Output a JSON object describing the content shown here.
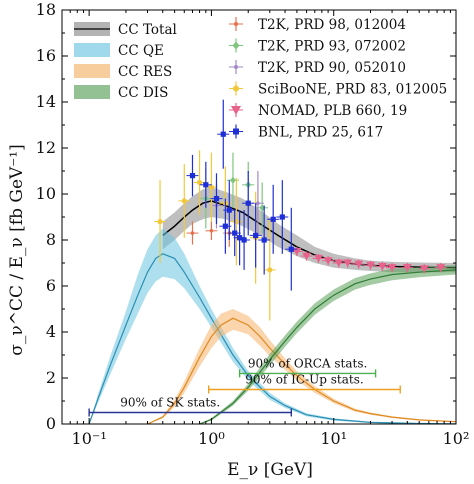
{
  "chart_data": {
    "type": "line",
    "xlabel": "E_ν [GeV]",
    "ylabel": "σ_ν^CC / E_ν  [fb GeV⁻¹]",
    "xscale": "log",
    "xlim": [
      0.06,
      100
    ],
    "ylim": [
      0,
      18
    ],
    "x_ticks": [
      {
        "value": 0.1,
        "label": "10⁻¹"
      },
      {
        "value": 1,
        "label": "10⁰"
      },
      {
        "value": 10,
        "label": "10¹"
      },
      {
        "value": 100,
        "label": "10²"
      }
    ],
    "y_ticks": [
      0,
      2,
      4,
      6,
      8,
      10,
      12,
      14,
      16,
      18
    ],
    "legend_position": "top",
    "bands": [
      {
        "name": "CC Total",
        "color": "#8a8a8a",
        "x": [
          0.4,
          0.5,
          0.6,
          0.7,
          0.85,
          1.0,
          1.3,
          1.8,
          2.5,
          3.5,
          5,
          7,
          10,
          15,
          20,
          30,
          50,
          100
        ],
        "y": [
          8.2,
          8.6,
          9.0,
          9.3,
          9.6,
          9.7,
          9.5,
          9.2,
          8.7,
          8.2,
          7.7,
          7.35,
          7.1,
          6.95,
          6.9,
          6.85,
          6.82,
          6.8
        ],
        "lo": [
          7.6,
          8.0,
          8.4,
          8.7,
          8.9,
          9.0,
          8.9,
          8.6,
          8.2,
          7.7,
          7.3,
          7.0,
          6.8,
          6.7,
          6.65,
          6.6,
          6.6,
          6.6
        ],
        "hi": [
          8.8,
          9.2,
          9.6,
          9.9,
          10.2,
          10.3,
          10.1,
          9.8,
          9.3,
          8.7,
          8.2,
          7.7,
          7.4,
          7.2,
          7.1,
          7.05,
          7.02,
          7.0
        ]
      },
      {
        "name": "CC QE",
        "color": "#6cc4e0",
        "x": [
          0.1,
          0.12,
          0.15,
          0.2,
          0.25,
          0.3,
          0.35,
          0.4,
          0.5,
          0.6,
          0.8,
          1.0,
          1.5,
          2,
          3,
          4,
          6,
          10,
          20,
          50,
          100
        ],
        "y": [
          0.0,
          1.2,
          2.6,
          4.3,
          5.6,
          6.6,
          7.2,
          7.4,
          7.2,
          6.6,
          5.5,
          4.6,
          3.0,
          2.1,
          1.2,
          0.8,
          0.4,
          0.2,
          0.07,
          0.02,
          0.01
        ],
        "lo": [
          0.0,
          1.0,
          2.2,
          3.7,
          4.8,
          5.7,
          6.2,
          6.4,
          6.3,
          5.9,
          5.0,
          4.2,
          2.7,
          1.9,
          1.05,
          0.7,
          0.33,
          0.15,
          0.05,
          0.01,
          0.0
        ],
        "hi": [
          0.0,
          1.4,
          3.0,
          4.9,
          6.5,
          7.6,
          8.2,
          8.5,
          8.1,
          7.4,
          6.0,
          5.0,
          3.3,
          2.3,
          1.35,
          0.9,
          0.47,
          0.25,
          0.09,
          0.03,
          0.01
        ]
      },
      {
        "name": "CC RES",
        "color": "#f5b26a",
        "x": [
          0.3,
          0.4,
          0.5,
          0.6,
          0.8,
          1.0,
          1.2,
          1.5,
          2.0,
          2.5,
          3,
          4,
          5,
          7,
          10,
          15,
          20,
          30,
          50,
          100
        ],
        "y": [
          0.0,
          0.3,
          0.9,
          1.6,
          2.9,
          3.8,
          4.3,
          4.6,
          4.3,
          3.8,
          3.3,
          2.6,
          2.1,
          1.5,
          1.0,
          0.6,
          0.45,
          0.3,
          0.18,
          0.1
        ],
        "lo": [
          0.0,
          0.25,
          0.75,
          1.35,
          2.5,
          3.3,
          3.8,
          4.1,
          3.9,
          3.4,
          2.95,
          2.35,
          1.9,
          1.35,
          0.9,
          0.53,
          0.4,
          0.26,
          0.15,
          0.08
        ],
        "hi": [
          0.0,
          0.35,
          1.05,
          1.85,
          3.3,
          4.3,
          4.8,
          5.0,
          4.7,
          4.2,
          3.65,
          2.85,
          2.3,
          1.65,
          1.1,
          0.67,
          0.5,
          0.34,
          0.21,
          0.12
        ]
      },
      {
        "name": "CC DIS",
        "color": "#5aa05a",
        "x": [
          0.8,
          1.0,
          1.5,
          2.0,
          3.0,
          4.0,
          5.0,
          7.0,
          10,
          15,
          20,
          30,
          50,
          100
        ],
        "y": [
          0.0,
          0.2,
          0.9,
          1.6,
          2.8,
          3.6,
          4.2,
          5.0,
          5.6,
          6.1,
          6.3,
          6.5,
          6.6,
          6.7
        ],
        "lo": [
          0.0,
          0.15,
          0.8,
          1.45,
          2.55,
          3.35,
          3.95,
          4.75,
          5.35,
          5.85,
          6.05,
          6.25,
          6.38,
          6.5
        ],
        "hi": [
          0.0,
          0.25,
          1.0,
          1.75,
          3.05,
          3.85,
          4.45,
          5.25,
          5.85,
          6.35,
          6.55,
          6.75,
          6.82,
          6.9
        ]
      }
    ],
    "series": [
      {
        "name": "T2K, PRD 98, 012004",
        "color": "#e6704e",
        "marker": "plus",
        "points": [
          {
            "x": 0.7,
            "y": 8.3,
            "err": 0.5
          },
          {
            "x": 1.0,
            "y": 8.4,
            "err": 0.4
          },
          {
            "x": 1.4,
            "y": 8.3,
            "err": 0.6
          }
        ]
      },
      {
        "name": "T2K, PRD 93, 072002",
        "color": "#7fc77f",
        "marker": "diamond",
        "points": [
          {
            "x": 0.9,
            "y": 9.8,
            "err": 1.3
          },
          {
            "x": 1.5,
            "y": 10.6,
            "err": 1.2
          },
          {
            "x": 2.0,
            "y": 10.4,
            "err": 1.0
          },
          {
            "x": 2.6,
            "y": 9.4,
            "err": 1.1
          }
        ]
      },
      {
        "name": "T2K, PRD 90, 052010",
        "color": "#a588c9",
        "marker": "plus",
        "points": [
          {
            "x": 1.1,
            "y": 9.5,
            "err": 1.0
          },
          {
            "x": 2.4,
            "y": 9.6,
            "err": 1.4
          }
        ]
      },
      {
        "name": "SciBooNE, PRD 83, 012005",
        "color": "#f2c83a",
        "marker": "circle",
        "points": [
          {
            "x": 0.38,
            "y": 8.8,
            "err": 1.8
          },
          {
            "x": 0.6,
            "y": 9.7,
            "err": 1.6
          },
          {
            "x": 0.8,
            "y": 10.5,
            "err": 1.4
          },
          {
            "x": 1.0,
            "y": 10.3,
            "err": 1.5
          },
          {
            "x": 1.3,
            "y": 9.6,
            "err": 1.6
          },
          {
            "x": 1.6,
            "y": 8.8,
            "err": 1.9
          },
          {
            "x": 2.3,
            "y": 8.1,
            "err": 2.0
          },
          {
            "x": 3.0,
            "y": 6.7,
            "err": 2.2
          }
        ]
      },
      {
        "name": "NOMAD, PLB 660, 19",
        "color": "#e8638c",
        "marker": "triangle-down",
        "points": [
          {
            "x": 5.0,
            "y": 7.5,
            "err": 0.2
          },
          {
            "x": 6.0,
            "y": 7.3,
            "err": 0.2
          },
          {
            "x": 7.5,
            "y": 7.2,
            "err": 0.2
          },
          {
            "x": 9.0,
            "y": 7.1,
            "err": 0.2
          },
          {
            "x": 11,
            "y": 7.0,
            "err": 0.2
          },
          {
            "x": 13,
            "y": 7.0,
            "err": 0.2
          },
          {
            "x": 16,
            "y": 6.95,
            "err": 0.2
          },
          {
            "x": 20,
            "y": 6.9,
            "err": 0.2
          },
          {
            "x": 25,
            "y": 6.85,
            "err": 0.2
          },
          {
            "x": 30,
            "y": 6.8,
            "err": 0.2
          },
          {
            "x": 40,
            "y": 6.8,
            "err": 0.2
          },
          {
            "x": 55,
            "y": 6.75,
            "err": 0.2
          },
          {
            "x": 75,
            "y": 6.8,
            "err": 0.2
          }
        ]
      },
      {
        "name": "BNL, PRD 25, 617",
        "color": "#1f2fd6",
        "marker": "square",
        "points": [
          {
            "x": 0.7,
            "y": 10.8,
            "err": 0.9
          },
          {
            "x": 0.9,
            "y": 10.4,
            "err": 1.0
          },
          {
            "x": 1.1,
            "y": 9.8,
            "err": 1.1
          },
          {
            "x": 1.25,
            "y": 12.6,
            "err": 1.5
          },
          {
            "x": 1.3,
            "y": 8.6,
            "err": 1.2
          },
          {
            "x": 1.4,
            "y": 9.3,
            "err": 1.3
          },
          {
            "x": 1.55,
            "y": 8.3,
            "err": 1.0
          },
          {
            "x": 1.7,
            "y": 8.1,
            "err": 1.2
          },
          {
            "x": 1.85,
            "y": 8.0,
            "err": 1.3
          },
          {
            "x": 2.0,
            "y": 9.6,
            "err": 1.4
          },
          {
            "x": 2.3,
            "y": 8.2,
            "err": 1.4
          },
          {
            "x": 2.7,
            "y": 8.0,
            "err": 1.5
          },
          {
            "x": 3.2,
            "y": 8.9,
            "err": 1.5
          },
          {
            "x": 3.8,
            "y": 9.0,
            "err": 1.6
          },
          {
            "x": 4.5,
            "y": 7.6,
            "err": 1.8
          }
        ]
      }
    ],
    "ranges": [
      {
        "label": "90% of ORCA stats.",
        "color": "#4caf50",
        "x0": 1.7,
        "x1": 22,
        "y": 2.2
      },
      {
        "label": "90% of IC-Up stats.",
        "color": "#f0a020",
        "x0": 0.95,
        "x1": 35,
        "y": 1.5
      },
      {
        "label": "90% of SK stats.",
        "color": "#283593",
        "x0": 0.1,
        "x1": 4.5,
        "y": 0.5
      }
    ]
  }
}
